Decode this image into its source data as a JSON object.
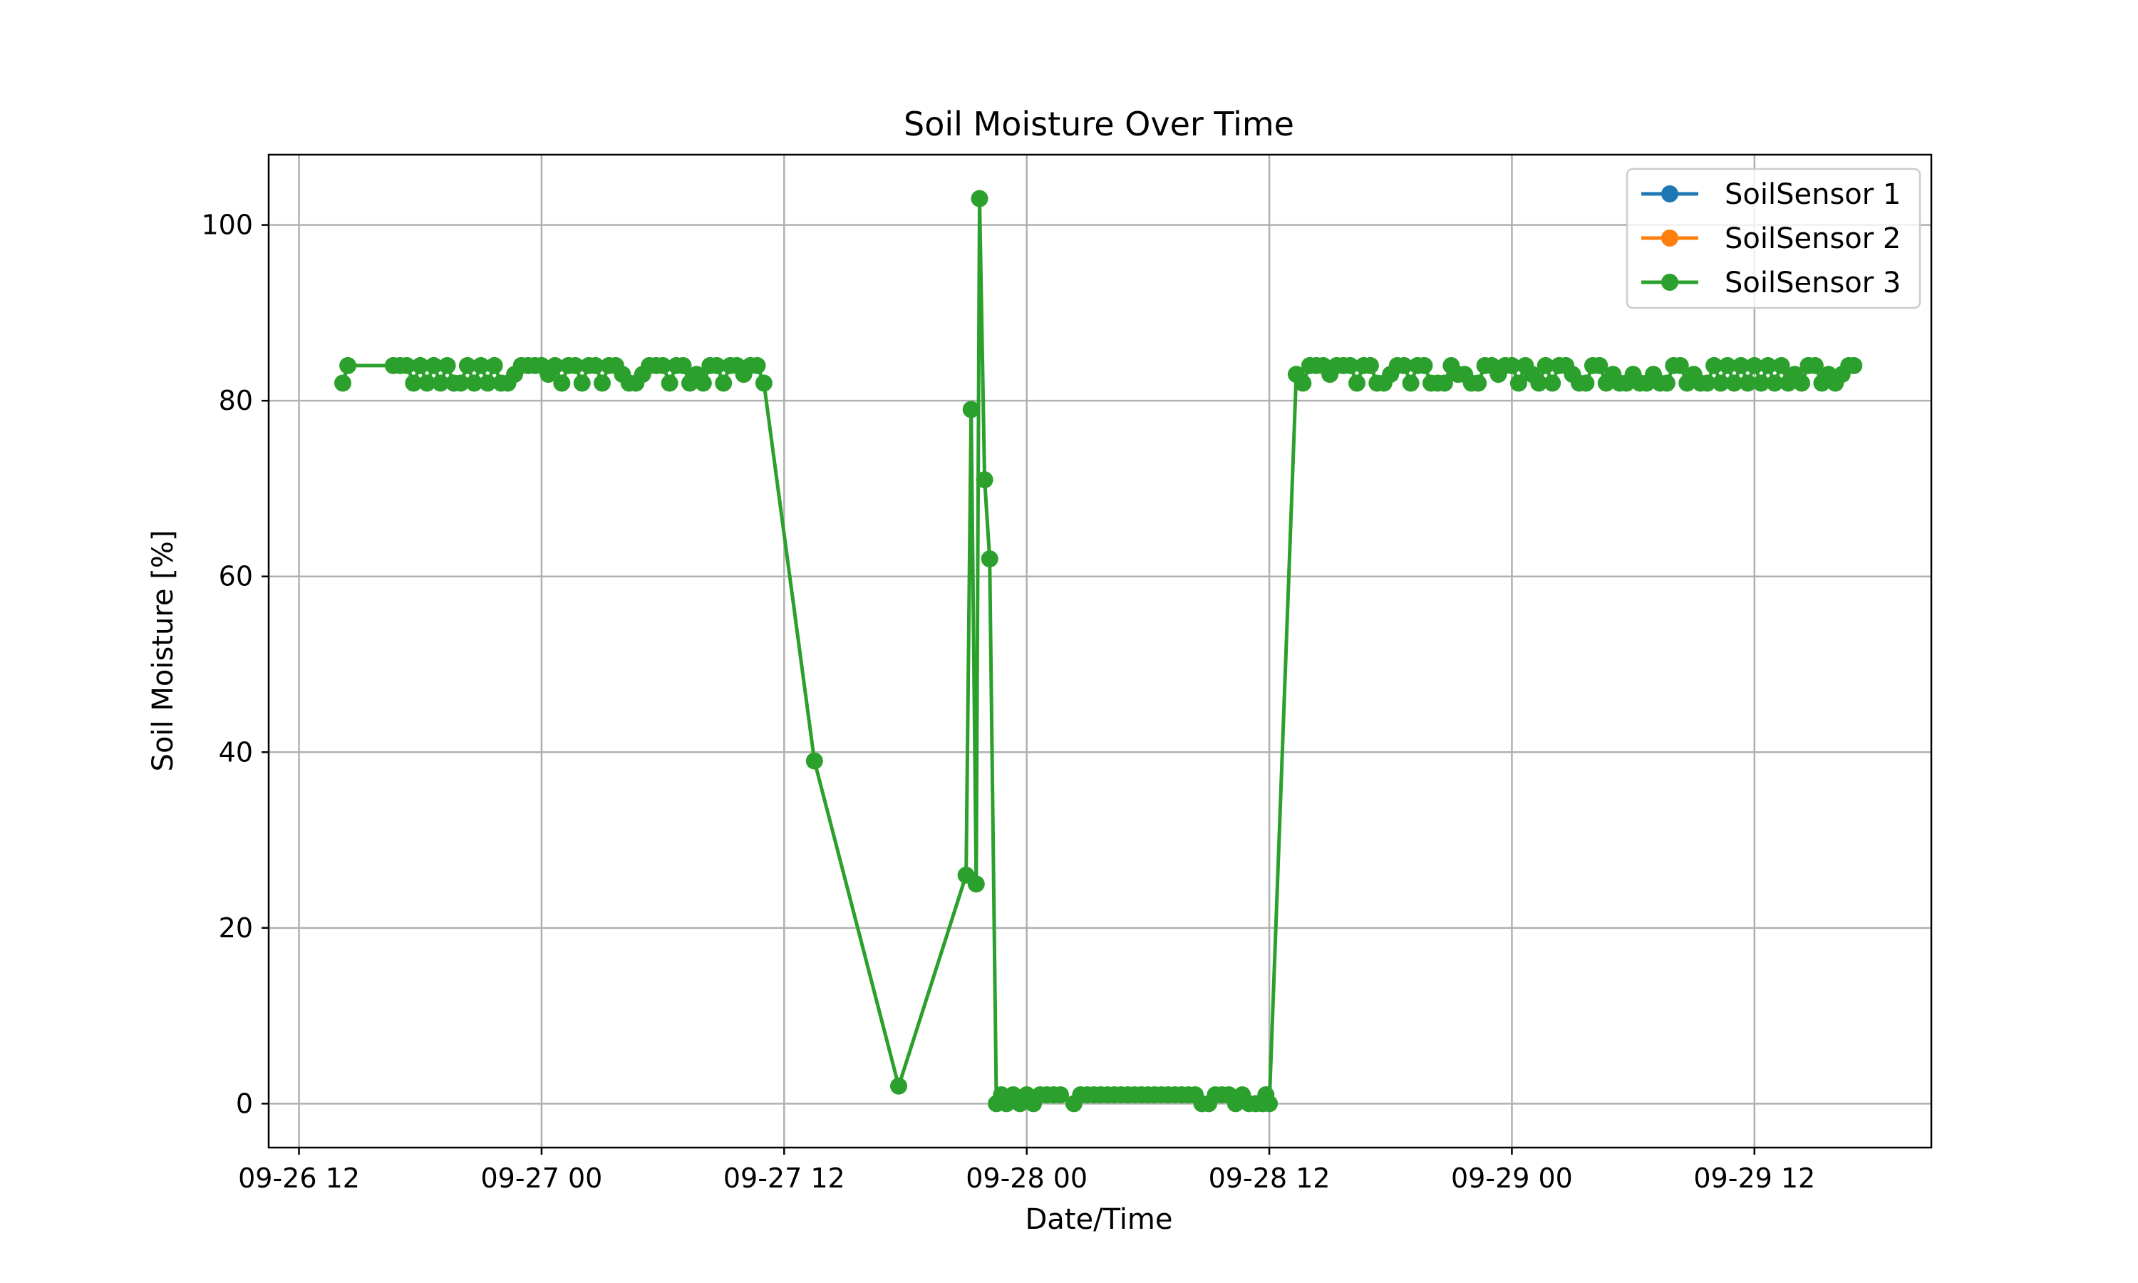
{
  "chart_data": {
    "type": "line",
    "title": "Soil Moisture Over Time",
    "xlabel": "Date/Time",
    "ylabel": "Soil Moisture [%]",
    "x_ticks": [
      "2024-09-26 12:00",
      "2024-09-27 00:00",
      "2024-09-27 12:00",
      "2024-09-28 00:00",
      "2024-09-28 12:00",
      "2024-09-29 00:00",
      "2024-09-29 12:00"
    ],
    "x_tick_labels": [
      "09-26 12",
      "09-27 00",
      "09-27 12",
      "09-28 00",
      "09-28 12",
      "09-29 00",
      "09-29 12"
    ],
    "xlim": [
      "2024-09-26 10:30",
      "2024-09-29 20:45"
    ],
    "ylim": [
      -5,
      108
    ],
    "y_ticks": [
      0,
      20,
      40,
      60,
      80,
      100
    ],
    "grid": true,
    "legend_position": "top-right",
    "series": [
      {
        "name": "SoilSensor 1",
        "color": "#1f77b4",
        "marker": "circle",
        "points": []
      },
      {
        "name": "SoilSensor 2",
        "color": "#ff7f0e",
        "marker": "circle",
        "points": []
      },
      {
        "name": "SoilSensor 3",
        "color": "#2ca02c",
        "marker": "circle",
        "points": [
          [
            "2024-09-26 14:10",
            82
          ],
          [
            "2024-09-26 14:25",
            84
          ],
          [
            "2024-09-26 16:40",
            84
          ],
          [
            "2024-09-26 17:00",
            84
          ],
          [
            "2024-09-26 17:20",
            84
          ],
          [
            "2024-09-26 17:40",
            82
          ],
          [
            "2024-09-26 18:00",
            84
          ],
          [
            "2024-09-26 18:20",
            82
          ],
          [
            "2024-09-26 18:40",
            84
          ],
          [
            "2024-09-26 19:00",
            82
          ],
          [
            "2024-09-26 19:20",
            84
          ],
          [
            "2024-09-26 19:40",
            82
          ],
          [
            "2024-09-26 20:00",
            82
          ],
          [
            "2024-09-26 20:20",
            84
          ],
          [
            "2024-09-26 20:40",
            82
          ],
          [
            "2024-09-26 21:00",
            84
          ],
          [
            "2024-09-26 21:20",
            82
          ],
          [
            "2024-09-26 21:40",
            84
          ],
          [
            "2024-09-26 22:00",
            82
          ],
          [
            "2024-09-26 22:20",
            82
          ],
          [
            "2024-09-26 22:40",
            83
          ],
          [
            "2024-09-26 23:00",
            84
          ],
          [
            "2024-09-26 23:20",
            84
          ],
          [
            "2024-09-26 23:40",
            84
          ],
          [
            "2024-09-27 00:00",
            84
          ],
          [
            "2024-09-27 00:20",
            83
          ],
          [
            "2024-09-27 00:40",
            84
          ],
          [
            "2024-09-27 01:00",
            82
          ],
          [
            "2024-09-27 01:20",
            84
          ],
          [
            "2024-09-27 01:40",
            84
          ],
          [
            "2024-09-27 02:00",
            82
          ],
          [
            "2024-09-27 02:20",
            84
          ],
          [
            "2024-09-27 02:40",
            84
          ],
          [
            "2024-09-27 03:00",
            82
          ],
          [
            "2024-09-27 03:20",
            84
          ],
          [
            "2024-09-27 03:40",
            84
          ],
          [
            "2024-09-27 04:00",
            83
          ],
          [
            "2024-09-27 04:20",
            82
          ],
          [
            "2024-09-27 04:40",
            82
          ],
          [
            "2024-09-27 05:00",
            83
          ],
          [
            "2024-09-27 05:20",
            84
          ],
          [
            "2024-09-27 05:40",
            84
          ],
          [
            "2024-09-27 06:00",
            84
          ],
          [
            "2024-09-27 06:20",
            82
          ],
          [
            "2024-09-27 06:40",
            84
          ],
          [
            "2024-09-27 07:00",
            84
          ],
          [
            "2024-09-27 07:20",
            82
          ],
          [
            "2024-09-27 07:40",
            83
          ],
          [
            "2024-09-27 08:00",
            82
          ],
          [
            "2024-09-27 08:20",
            84
          ],
          [
            "2024-09-27 08:40",
            84
          ],
          [
            "2024-09-27 09:00",
            82
          ],
          [
            "2024-09-27 09:20",
            84
          ],
          [
            "2024-09-27 09:40",
            84
          ],
          [
            "2024-09-27 10:00",
            83
          ],
          [
            "2024-09-27 10:20",
            84
          ],
          [
            "2024-09-27 10:40",
            84
          ],
          [
            "2024-09-27 11:00",
            82
          ],
          [
            "2024-09-27 13:30",
            39
          ],
          [
            "2024-09-27 17:40",
            2
          ],
          [
            "2024-09-27 21:00",
            26
          ],
          [
            "2024-09-27 21:15",
            79
          ],
          [
            "2024-09-27 21:30",
            25
          ],
          [
            "2024-09-27 21:40",
            103
          ],
          [
            "2024-09-27 21:55",
            71
          ],
          [
            "2024-09-27 22:10",
            62
          ],
          [
            "2024-09-27 22:30",
            0
          ],
          [
            "2024-09-27 22:45",
            1
          ],
          [
            "2024-09-27 23:00",
            0
          ],
          [
            "2024-09-27 23:20",
            1
          ],
          [
            "2024-09-27 23:40",
            0
          ],
          [
            "2024-09-28 00:00",
            1
          ],
          [
            "2024-09-28 00:20",
            0
          ],
          [
            "2024-09-28 00:40",
            1
          ],
          [
            "2024-09-28 01:00",
            1
          ],
          [
            "2024-09-28 01:20",
            1
          ],
          [
            "2024-09-28 01:40",
            1
          ],
          [
            "2024-09-28 02:20",
            0
          ],
          [
            "2024-09-28 02:40",
            1
          ],
          [
            "2024-09-28 03:00",
            1
          ],
          [
            "2024-09-28 03:20",
            1
          ],
          [
            "2024-09-28 03:40",
            1
          ],
          [
            "2024-09-28 04:00",
            1
          ],
          [
            "2024-09-28 04:20",
            1
          ],
          [
            "2024-09-28 04:40",
            1
          ],
          [
            "2024-09-28 05:00",
            1
          ],
          [
            "2024-09-28 05:20",
            1
          ],
          [
            "2024-09-28 05:40",
            1
          ],
          [
            "2024-09-28 06:00",
            1
          ],
          [
            "2024-09-28 06:20",
            1
          ],
          [
            "2024-09-28 06:40",
            1
          ],
          [
            "2024-09-28 07:00",
            1
          ],
          [
            "2024-09-28 07:20",
            1
          ],
          [
            "2024-09-28 07:40",
            1
          ],
          [
            "2024-09-28 08:00",
            1
          ],
          [
            "2024-09-28 08:20",
            1
          ],
          [
            "2024-09-28 08:40",
            0
          ],
          [
            "2024-09-28 09:00",
            0
          ],
          [
            "2024-09-28 09:20",
            1
          ],
          [
            "2024-09-28 09:40",
            1
          ],
          [
            "2024-09-28 10:00",
            1
          ],
          [
            "2024-09-28 10:20",
            0
          ],
          [
            "2024-09-28 10:40",
            1
          ],
          [
            "2024-09-28 11:00",
            0
          ],
          [
            "2024-09-28 11:20",
            0
          ],
          [
            "2024-09-28 11:40",
            0
          ],
          [
            "2024-09-28 11:50",
            1
          ],
          [
            "2024-09-28 12:00",
            0
          ],
          [
            "2024-09-28 13:20",
            83
          ],
          [
            "2024-09-28 13:40",
            82
          ],
          [
            "2024-09-28 14:00",
            84
          ],
          [
            "2024-09-28 14:20",
            84
          ],
          [
            "2024-09-28 14:40",
            84
          ],
          [
            "2024-09-28 15:00",
            83
          ],
          [
            "2024-09-28 15:20",
            84
          ],
          [
            "2024-09-28 15:40",
            84
          ],
          [
            "2024-09-28 16:00",
            84
          ],
          [
            "2024-09-28 16:20",
            82
          ],
          [
            "2024-09-28 16:40",
            84
          ],
          [
            "2024-09-28 17:00",
            84
          ],
          [
            "2024-09-28 17:20",
            82
          ],
          [
            "2024-09-28 17:40",
            82
          ],
          [
            "2024-09-28 18:00",
            83
          ],
          [
            "2024-09-28 18:20",
            84
          ],
          [
            "2024-09-28 18:40",
            84
          ],
          [
            "2024-09-28 19:00",
            82
          ],
          [
            "2024-09-28 19:20",
            84
          ],
          [
            "2024-09-28 19:40",
            84
          ],
          [
            "2024-09-28 20:00",
            82
          ],
          [
            "2024-09-28 20:20",
            82
          ],
          [
            "2024-09-28 20:40",
            82
          ],
          [
            "2024-09-28 21:00",
            84
          ],
          [
            "2024-09-28 21:20",
            83
          ],
          [
            "2024-09-28 21:40",
            83
          ],
          [
            "2024-09-28 22:00",
            82
          ],
          [
            "2024-09-28 22:20",
            82
          ],
          [
            "2024-09-28 22:40",
            84
          ],
          [
            "2024-09-28 23:00",
            84
          ],
          [
            "2024-09-28 23:20",
            83
          ],
          [
            "2024-09-28 23:40",
            84
          ],
          [
            "2024-09-29 00:00",
            84
          ],
          [
            "2024-09-29 00:20",
            82
          ],
          [
            "2024-09-29 00:40",
            84
          ],
          [
            "2024-09-29 01:00",
            83
          ],
          [
            "2024-09-29 01:20",
            82
          ],
          [
            "2024-09-29 01:40",
            84
          ],
          [
            "2024-09-29 02:00",
            82
          ],
          [
            "2024-09-29 02:20",
            84
          ],
          [
            "2024-09-29 02:40",
            84
          ],
          [
            "2024-09-29 03:00",
            83
          ],
          [
            "2024-09-29 03:20",
            82
          ],
          [
            "2024-09-29 03:40",
            82
          ],
          [
            "2024-09-29 04:00",
            84
          ],
          [
            "2024-09-29 04:20",
            84
          ],
          [
            "2024-09-29 04:40",
            82
          ],
          [
            "2024-09-29 05:00",
            83
          ],
          [
            "2024-09-29 05:20",
            82
          ],
          [
            "2024-09-29 05:40",
            82
          ],
          [
            "2024-09-29 06:00",
            83
          ],
          [
            "2024-09-29 06:20",
            82
          ],
          [
            "2024-09-29 06:40",
            82
          ],
          [
            "2024-09-29 07:00",
            83
          ],
          [
            "2024-09-29 07:20",
            82
          ],
          [
            "2024-09-29 07:40",
            82
          ],
          [
            "2024-09-29 08:00",
            84
          ],
          [
            "2024-09-29 08:20",
            84
          ],
          [
            "2024-09-29 08:40",
            82
          ],
          [
            "2024-09-29 09:00",
            83
          ],
          [
            "2024-09-29 09:20",
            82
          ],
          [
            "2024-09-29 09:40",
            82
          ],
          [
            "2024-09-29 10:00",
            84
          ],
          [
            "2024-09-29 10:20",
            82
          ],
          [
            "2024-09-29 10:40",
            84
          ],
          [
            "2024-09-29 11:00",
            82
          ],
          [
            "2024-09-29 11:20",
            84
          ],
          [
            "2024-09-29 11:40",
            82
          ],
          [
            "2024-09-29 12:00",
            84
          ],
          [
            "2024-09-29 12:20",
            82
          ],
          [
            "2024-09-29 12:40",
            84
          ],
          [
            "2024-09-29 13:00",
            82
          ],
          [
            "2024-09-29 13:20",
            84
          ],
          [
            "2024-09-29 13:40",
            82
          ],
          [
            "2024-09-29 14:00",
            83
          ],
          [
            "2024-09-29 14:20",
            82
          ],
          [
            "2024-09-29 14:40",
            84
          ],
          [
            "2024-09-29 15:00",
            84
          ],
          [
            "2024-09-29 15:20",
            82
          ],
          [
            "2024-09-29 15:40",
            83
          ],
          [
            "2024-09-29 16:00",
            82
          ],
          [
            "2024-09-29 16:20",
            83
          ],
          [
            "2024-09-29 16:40",
            84
          ],
          [
            "2024-09-29 16:55",
            84
          ]
        ]
      }
    ]
  }
}
